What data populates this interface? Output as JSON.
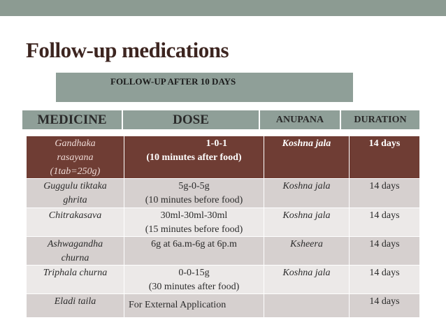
{
  "slide": {
    "title": "Follow-up medications",
    "subtitle": "FOLLOW-UP AFTER 10 DAYS"
  },
  "headers": {
    "medicine": "MEDICINE",
    "dose": "DOSE",
    "anupana": "ANUPANA",
    "duration": "DURATION"
  },
  "rows": [
    {
      "medicine": [
        "Gandhaka",
        "rasayana",
        "(1tab=250g)"
      ],
      "dose": [
        "1-0-1",
        "(10 minutes after food)"
      ],
      "anupana": "Koshna jala",
      "duration": "14 days"
    },
    {
      "medicine": [
        "Guggulu tiktaka",
        "ghrita"
      ],
      "dose": [
        "5g-0-5g",
        "(10 minutes before food)"
      ],
      "anupana": "Koshna jala",
      "duration": "14 days"
    },
    {
      "medicine": [
        "Chitrakasava"
      ],
      "dose": [
        "30ml-30ml-30ml",
        "(15 minutes before food)"
      ],
      "anupana": "Koshna jala",
      "duration": "14 days"
    },
    {
      "medicine": [
        "Ashwagandha",
        "churna"
      ],
      "dose": [
        "6g at 6a.m-6g at 6p.m"
      ],
      "anupana": "Ksheera",
      "duration": "14 days"
    },
    {
      "medicine": [
        "Triphala churna"
      ],
      "dose": [
        "0-0-15g",
        "(30 minutes after food)"
      ],
      "anupana": "Koshna jala",
      "duration": "14 days"
    },
    {
      "medicine": [
        "Eladi taila"
      ],
      "dose": [
        "For External Application"
      ],
      "anupana": "",
      "duration": "14 days"
    }
  ],
  "colors": {
    "band": "#8c9b92",
    "header_fill": "#8f9f98",
    "first_row": "#6f3d34",
    "row_dark": "#d6d0cf",
    "row_light": "#ece9e8",
    "title": "#3d2520"
  }
}
